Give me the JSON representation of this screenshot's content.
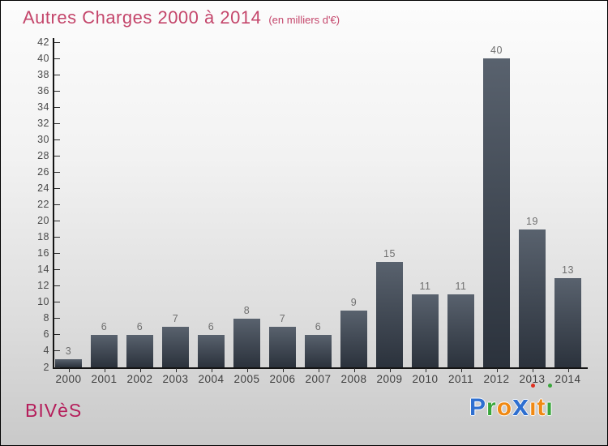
{
  "header": {
    "title": "Autres Charges 2000 à 2014",
    "subtitle": "(en milliers d'€)"
  },
  "footer": {
    "brand": "BIVèS",
    "logo": {
      "name": "Proxiti",
      "letters": [
        {
          "ch": "P",
          "color": "#2e6fd0"
        },
        {
          "ch": "r",
          "color": "#3aa63c"
        },
        {
          "ch": "o",
          "color": "#f08913"
        },
        {
          "ch": "x",
          "color": "#2e6fd0",
          "big": true
        },
        {
          "ch": "i",
          "color": "#f08913",
          "dot": "#e03020"
        },
        {
          "ch": "t",
          "color": "#f08913"
        },
        {
          "ch": "i",
          "color": "#3aa63c",
          "dot": "#3aa63c"
        }
      ]
    }
  },
  "chart_data": {
    "type": "bar",
    "title": "Autres Charges 2000 à 2014",
    "subtitle": "(en milliers d'€)",
    "categories": [
      "2000",
      "2001",
      "2002",
      "2003",
      "2004",
      "2005",
      "2006",
      "2007",
      "2008",
      "2009",
      "2010",
      "2011",
      "2012",
      "2013",
      "2014"
    ],
    "values": [
      3,
      6,
      6,
      7,
      6,
      8,
      7,
      6,
      9,
      15,
      11,
      11,
      40,
      19,
      13
    ],
    "xlabel": "",
    "ylabel": "",
    "ylim": [
      2,
      42
    ],
    "ytick_step": 2,
    "grid": false,
    "legend": false,
    "bar_color_top": "#59626e",
    "bar_color_bottom": "#2b323c",
    "value_label_color": "#6f6f6f",
    "axis_color": "#141414",
    "title_color": "#c4466b",
    "background_top": "#fcfcfc",
    "background_bottom": "#c9c9c9"
  }
}
